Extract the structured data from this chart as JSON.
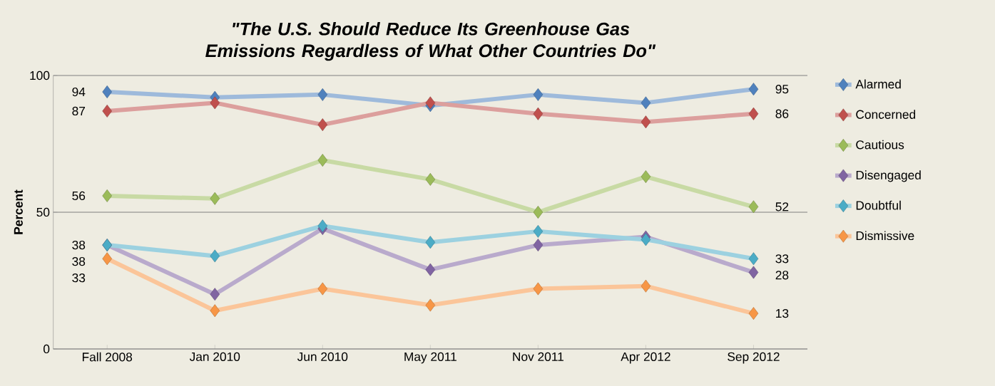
{
  "chart_data": {
    "type": "line",
    "title": "\"The U.S. Should Reduce Its Greenhouse Gas Emissions Regardless of What Other Countries Do\"",
    "ylabel": "Percent",
    "categories": [
      "Fall 2008",
      "Jan 2010",
      "Jun 2010",
      "May 2011",
      "Nov 2011",
      "Apr 2012",
      "Sep 2012"
    ],
    "ylim": [
      0,
      100
    ],
    "yticks": [
      0,
      50,
      100
    ],
    "grid": "y",
    "legend": "right",
    "marker": "diamond",
    "line_style": "solid",
    "series": [
      {
        "name": "Alarmed",
        "color": "#4f81bd",
        "values": [
          94,
          92,
          93,
          89,
          93,
          90,
          95
        ],
        "value_labels": [
          "94",
          null,
          null,
          null,
          null,
          null,
          "95"
        ]
      },
      {
        "name": "Concerned",
        "color": "#c0504d",
        "values": [
          87,
          90,
          82,
          90,
          86,
          83,
          86
        ],
        "value_labels": [
          "87",
          null,
          null,
          null,
          null,
          null,
          "86"
        ]
      },
      {
        "name": "Cautious",
        "color": "#9bbb59",
        "values": [
          56,
          55,
          69,
          62,
          50,
          63,
          52
        ],
        "value_labels": [
          "56",
          null,
          null,
          null,
          null,
          null,
          "52"
        ]
      },
      {
        "name": "Disengaged",
        "color": "#8064a2",
        "values": [
          38,
          20,
          44,
          29,
          38,
          41,
          28
        ],
        "value_labels": [
          "38",
          null,
          null,
          null,
          null,
          null,
          "28"
        ]
      },
      {
        "name": "Doubtful",
        "color": "#4bacc6",
        "values": [
          38,
          34,
          45,
          39,
          43,
          40,
          33
        ],
        "value_labels": [
          "38",
          null,
          null,
          null,
          null,
          null,
          "33"
        ]
      },
      {
        "name": "Dismissive",
        "color": "#f79646",
        "values": [
          33,
          14,
          22,
          16,
          22,
          23,
          13
        ],
        "value_labels": [
          "33",
          null,
          null,
          null,
          null,
          null,
          "13"
        ]
      }
    ]
  }
}
